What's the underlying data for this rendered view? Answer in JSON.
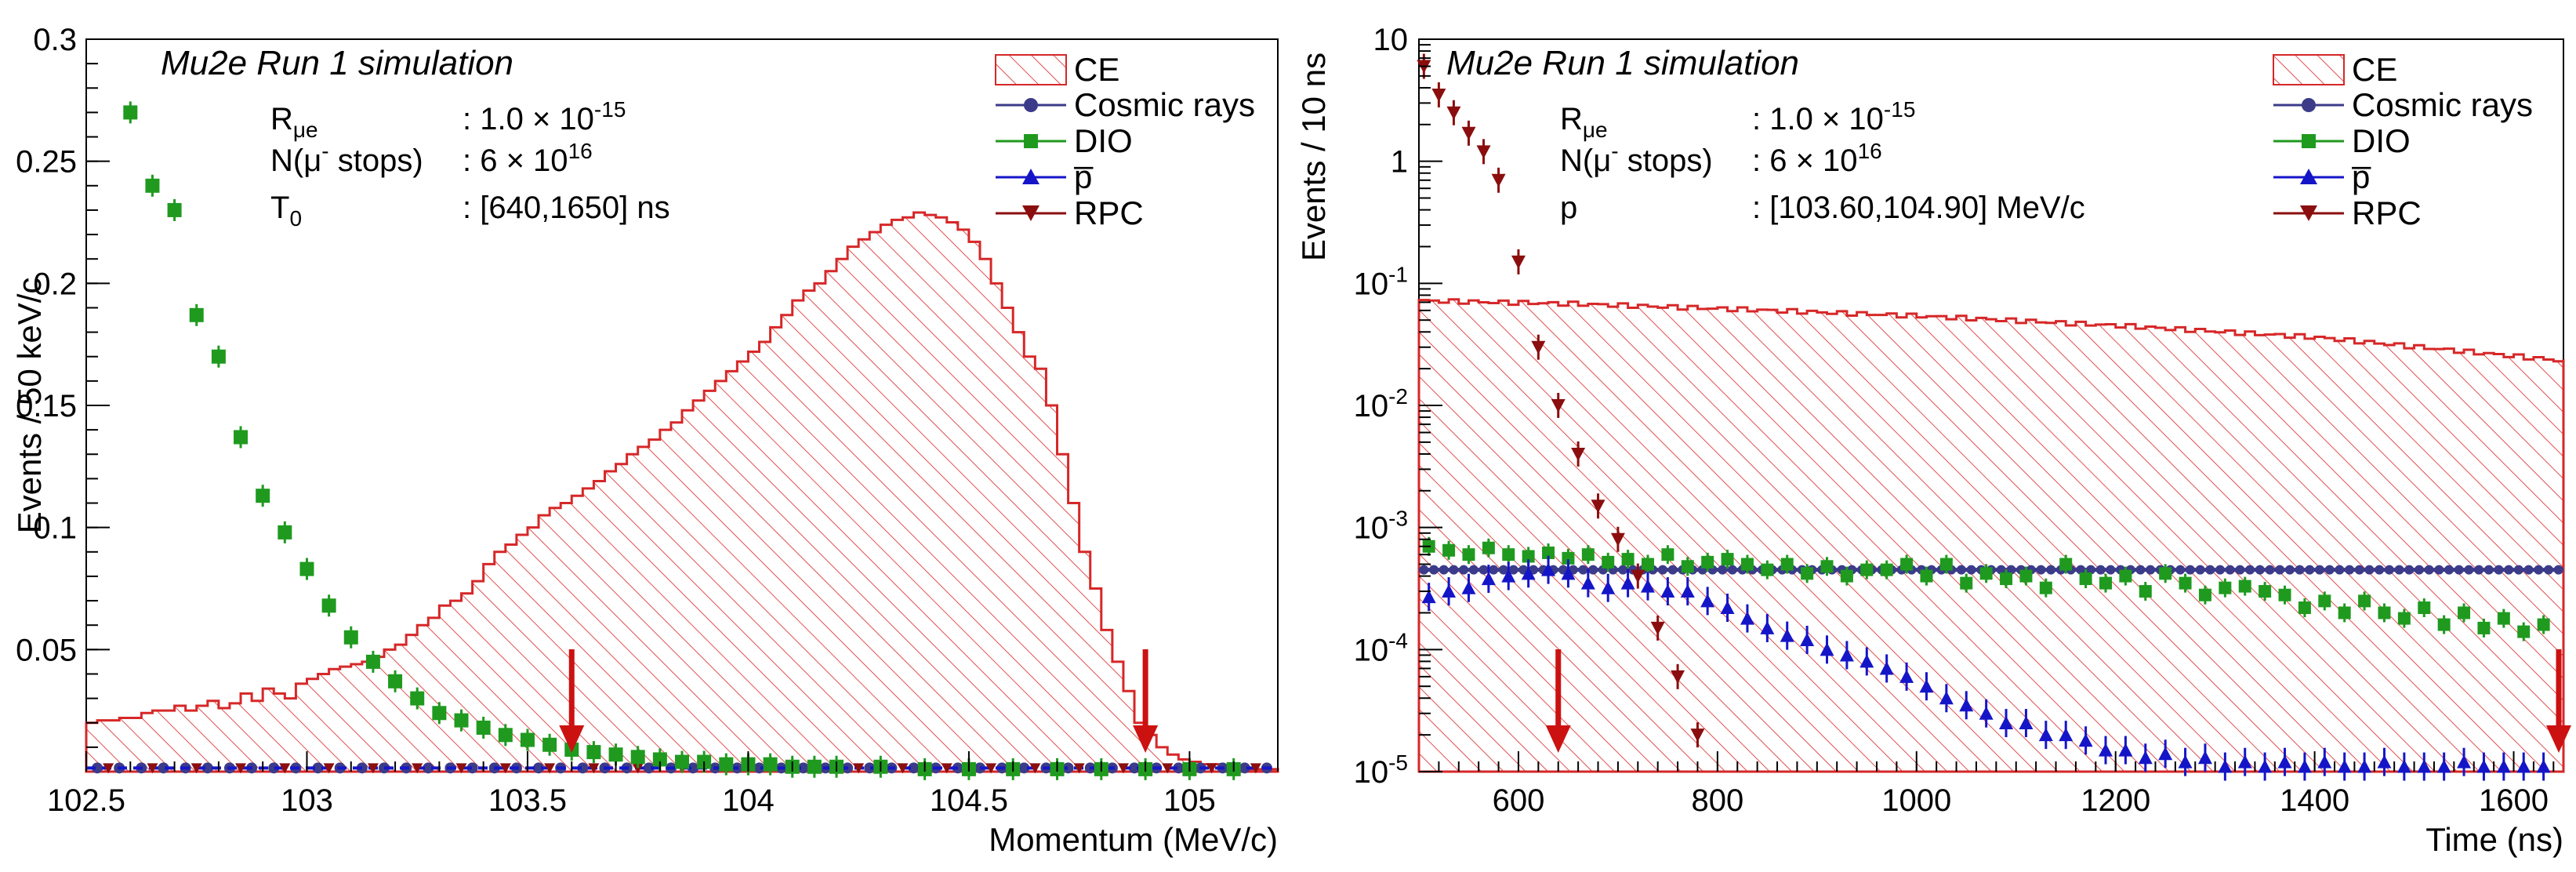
{
  "colors": {
    "ce": "#d62728",
    "cosmic": "#3b3b8a",
    "dio": "#1f9a1f",
    "pbar": "#1515c8",
    "rpc": "#8b0e0e",
    "arrow": "#cc1111"
  },
  "legend_entries": [
    "CE",
    "Cosmic rays",
    "DIO",
    "p̅",
    "RPC"
  ],
  "chart_data": [
    {
      "type": "bar",
      "title": "Mu2e Run 1 simulation",
      "xlabel": "Momentum (MeV/c)",
      "ylabel": "Events / 50 keV/c",
      "xlim": [
        102.5,
        105.2
      ],
      "ylim": [
        0,
        0.3
      ],
      "xticks": [
        "102.5",
        "103",
        "103.5",
        "104",
        "104.5",
        "105"
      ],
      "xtick_values": [
        102.5,
        103,
        103.5,
        104,
        104.5,
        105
      ],
      "yticks": [
        "0.05",
        "0.1",
        "0.15",
        "0.2",
        "0.25",
        "0.3"
      ],
      "ytick_values": [
        0.05,
        0.1,
        0.15,
        0.2,
        0.25,
        0.3
      ],
      "info": [
        {
          "label": "R",
          "sub": "μe",
          "sup": "",
          "value": ": 1.0 × 10",
          "value_sup": "-15"
        },
        {
          "label": "N(μ",
          "sub": "",
          "sup": "-",
          "label_tail": " stops)",
          "value": ": 6 × 10",
          "value_sup": "16"
        },
        {
          "label": "T",
          "sub": "0",
          "sup": "",
          "value": ": [640,1650] ns",
          "value_sup": ""
        }
      ],
      "arrows_at": [
        103.6,
        104.9
      ],
      "ce_hist": {
        "x_start": 102.5,
        "bin_width": 0.025,
        "values": [
          0.02,
          0.021,
          0.021,
          0.022,
          0.022,
          0.024,
          0.025,
          0.025,
          0.027,
          0.025,
          0.027,
          0.029,
          0.026,
          0.028,
          0.032,
          0.029,
          0.034,
          0.032,
          0.03,
          0.036,
          0.038,
          0.04,
          0.042,
          0.043,
          0.044,
          0.045,
          0.047,
          0.05,
          0.052,
          0.056,
          0.06,
          0.063,
          0.068,
          0.07,
          0.073,
          0.078,
          0.085,
          0.09,
          0.093,
          0.097,
          0.1,
          0.105,
          0.108,
          0.11,
          0.113,
          0.116,
          0.119,
          0.123,
          0.126,
          0.13,
          0.133,
          0.136,
          0.14,
          0.143,
          0.148,
          0.152,
          0.156,
          0.16,
          0.164,
          0.168,
          0.172,
          0.176,
          0.182,
          0.187,
          0.193,
          0.197,
          0.2,
          0.205,
          0.21,
          0.215,
          0.218,
          0.221,
          0.224,
          0.226,
          0.227,
          0.229,
          0.228,
          0.227,
          0.225,
          0.222,
          0.217,
          0.21,
          0.2,
          0.19,
          0.18,
          0.17,
          0.165,
          0.15,
          0.13,
          0.11,
          0.09,
          0.075,
          0.058,
          0.045,
          0.033,
          0.02,
          0.015,
          0.01,
          0.007,
          0.005,
          0.004,
          0.003,
          0.003,
          0.002,
          0.002,
          0.001,
          0.001,
          0.001
        ]
      },
      "dio_points": {
        "x": [
          102.6,
          102.65,
          102.7,
          102.75,
          102.8,
          102.85,
          102.9,
          102.95,
          103.0,
          103.05,
          103.1,
          103.15,
          103.2,
          103.25,
          103.3,
          103.35,
          103.4,
          103.45,
          103.5,
          103.55,
          103.6,
          103.65,
          103.7,
          103.75,
          103.8,
          103.85,
          103.9,
          103.95,
          104.0,
          104.05,
          104.1,
          104.15,
          104.2,
          104.3,
          104.4,
          104.5,
          104.6,
          104.7,
          104.8,
          104.9,
          105.0,
          105.1
        ],
        "y": [
          0.27,
          0.24,
          0.23,
          0.187,
          0.17,
          0.137,
          0.113,
          0.098,
          0.083,
          0.068,
          0.055,
          0.045,
          0.037,
          0.03,
          0.024,
          0.021,
          0.018,
          0.015,
          0.013,
          0.011,
          0.009,
          0.008,
          0.007,
          0.006,
          0.005,
          0.004,
          0.004,
          0.003,
          0.003,
          0.003,
          0.002,
          0.002,
          0.002,
          0.002,
          0.001,
          0.001,
          0.001,
          0.001,
          0.001,
          0.001,
          0.001,
          0.001
        ]
      }
    },
    {
      "type": "bar",
      "title": "Mu2e Run 1 simulation",
      "xlabel": "Time (ns)",
      "ylabel": "Events / 10 ns",
      "xlim": [
        500,
        1650
      ],
      "ylim": [
        1e-05,
        10
      ],
      "yscale": "log",
      "xticks": [
        "600",
        "800",
        "1000",
        "1200",
        "1400",
        "1600"
      ],
      "xtick_values": [
        600,
        800,
        1000,
        1200,
        1400,
        1600
      ],
      "yticks_base": "10",
      "ytick_exponents": [
        "-5",
        "-4",
        "-3",
        "-2",
        "-1",
        "",
        ""
      ],
      "ytick_labels": [
        "1",
        "10"
      ],
      "info": [
        {
          "label": "R",
          "sub": "μe",
          "sup": "",
          "value": ": 1.0 × 10",
          "value_sup": "-15"
        },
        {
          "label": "N(μ",
          "sub": "",
          "sup": "-",
          "label_tail": " stops)",
          "value": ": 6 × 10",
          "value_sup": "16"
        },
        {
          "label": "p",
          "sub": "",
          "sup": "",
          "value": ": [103.60,104.90] MeV/c",
          "value_sup": ""
        }
      ],
      "arrows_at": [
        640,
        1650
      ],
      "ce_curve": {
        "x": [
          500,
          650,
          800,
          1000,
          1200,
          1400,
          1650
        ],
        "y": [
          0.072,
          0.068,
          0.062,
          0.054,
          0.045,
          0.036,
          0.023
        ]
      },
      "cosmic_level": 0.00045,
      "dio_points": {
        "x": [
          510,
          530,
          550,
          570,
          590,
          610,
          630,
          650,
          670,
          690,
          710,
          730,
          750,
          770,
          790,
          810,
          830,
          850,
          870,
          890,
          910,
          930,
          950,
          970,
          990,
          1010,
          1030,
          1050,
          1070,
          1090,
          1110,
          1130,
          1150,
          1170,
          1190,
          1210,
          1230,
          1250,
          1270,
          1290,
          1310,
          1330,
          1350,
          1370,
          1390,
          1410,
          1430,
          1450,
          1470,
          1490,
          1510,
          1530,
          1550,
          1570,
          1590,
          1610,
          1630
        ],
        "y": [
          0.0007,
          0.00065,
          0.0006,
          0.00068,
          0.0006,
          0.00058,
          0.00062,
          0.00056,
          0.0006,
          0.00052,
          0.00055,
          0.0005,
          0.0006,
          0.00048,
          0.00052,
          0.00055,
          0.0005,
          0.00045,
          0.0005,
          0.00042,
          0.00048,
          0.0004,
          0.00045,
          0.00045,
          0.0005,
          0.0004,
          0.0005,
          0.00035,
          0.00042,
          0.00038,
          0.0004,
          0.00032,
          0.0005,
          0.00038,
          0.00035,
          0.0004,
          0.0003,
          0.00042,
          0.00035,
          0.00028,
          0.00032,
          0.00033,
          0.0003,
          0.00028,
          0.00022,
          0.00025,
          0.0002,
          0.00025,
          0.0002,
          0.00018,
          0.00022,
          0.00016,
          0.0002,
          0.00015,
          0.00018,
          0.00014,
          0.00016
        ]
      },
      "pbar_points": {
        "x": [
          510,
          530,
          550,
          570,
          590,
          610,
          630,
          650,
          670,
          690,
          710,
          730,
          750,
          770,
          790,
          810,
          830,
          850,
          870,
          890,
          910,
          930,
          950,
          970,
          990,
          1010,
          1030,
          1050,
          1070,
          1090,
          1110,
          1130,
          1150,
          1170,
          1190,
          1210,
          1230,
          1250,
          1270,
          1290,
          1310,
          1330,
          1350,
          1370,
          1390,
          1410,
          1430,
          1450,
          1470,
          1490,
          1510,
          1530,
          1550,
          1570,
          1590,
          1610,
          1630
        ],
        "y": [
          0.00027,
          0.0003,
          0.00032,
          0.00038,
          0.0004,
          0.00042,
          0.00045,
          0.00042,
          0.00035,
          0.00032,
          0.00035,
          0.00033,
          0.0003,
          0.0003,
          0.00025,
          0.00022,
          0.00018,
          0.00015,
          0.00013,
          0.00012,
          0.0001,
          9e-05,
          8e-05,
          7e-05,
          6e-05,
          5e-05,
          4e-05,
          3.5e-05,
          3e-05,
          2.5e-05,
          2.5e-05,
          2e-05,
          2e-05,
          1.8e-05,
          1.5e-05,
          1.5e-05,
          1.3e-05,
          1.4e-05,
          1.2e-05,
          1.3e-05,
          1.1e-05,
          1.2e-05,
          1.1e-05,
          1.2e-05,
          1.1e-05,
          1.2e-05,
          1.1e-05,
          1.1e-05,
          1.2e-05,
          1.1e-05,
          1.1e-05,
          1.1e-05,
          1.2e-05,
          1.1e-05,
          1.1e-05,
          1.1e-05,
          1.1e-05
        ]
      },
      "rpc_points": {
        "x": [
          505,
          520,
          535,
          550,
          565,
          580,
          600,
          620,
          640,
          660,
          680,
          700,
          720,
          740,
          760,
          780
        ],
        "y": [
          6,
          3.5,
          2.5,
          1.7,
          1.2,
          0.7,
          0.15,
          0.03,
          0.01,
          0.004,
          0.0015,
          0.0008,
          0.0004,
          0.00015,
          6e-05,
          2e-05
        ]
      }
    }
  ]
}
